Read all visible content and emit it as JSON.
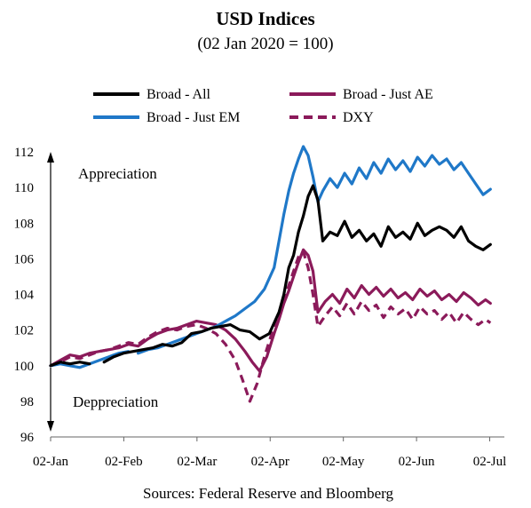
{
  "chart_data": {
    "type": "line",
    "title": "USD Indices",
    "subtitle": "(02 Jan 2020 = 100)",
    "source": "Sources: Federal Reserve and Bloomberg",
    "ylim": [
      96,
      112
    ],
    "yticks": [
      96,
      98,
      100,
      102,
      104,
      106,
      108,
      110,
      112
    ],
    "xticks": [
      "02-Jan",
      "02-Feb",
      "02-Mar",
      "02-Apr",
      "02-May",
      "02-Jun",
      "02-Jul"
    ],
    "x_unit": "days since 02-Jan",
    "xlim": [
      0,
      182
    ],
    "annotations": {
      "up": "Appreciation",
      "down": "Deppreciation"
    },
    "legend_position": "top",
    "series": [
      {
        "name": "Broad - All",
        "color": "#000000",
        "dash": false,
        "points": [
          [
            [
              0,
              100
            ],
            [
              4,
              100.2
            ],
            [
              8,
              100.1
            ],
            [
              12,
              100.2
            ],
            [
              16,
              100.1
            ]
          ],
          [
            [
              22,
              100.2
            ],
            [
              26,
              100.5
            ],
            [
              30,
              100.7
            ],
            [
              34,
              100.8
            ],
            [
              38,
              100.9
            ],
            [
              42,
              101.0
            ],
            [
              46,
              101.2
            ],
            [
              50,
              101.1
            ],
            [
              54,
              101.3
            ],
            [
              58,
              101.8
            ],
            [
              62,
              101.9
            ],
            [
              66,
              102.1
            ],
            [
              70,
              102.2
            ],
            [
              74,
              102.3
            ],
            [
              78,
              102.0
            ],
            [
              82,
              101.9
            ],
            [
              86,
              101.5
            ],
            [
              90,
              101.8
            ],
            [
              92,
              102.4
            ],
            [
              94,
              103.0
            ],
            [
              96,
              104.0
            ],
            [
              98,
              105.5
            ],
            [
              100,
              106.2
            ],
            [
              102,
              107.5
            ],
            [
              104,
              108.4
            ],
            [
              106,
              109.5
            ],
            [
              108,
              110.1
            ],
            [
              110,
              109.3
            ],
            [
              112,
              107.0
            ],
            [
              115,
              107.5
            ],
            [
              118,
              107.3
            ],
            [
              121,
              108.1
            ],
            [
              124,
              107.2
            ],
            [
              127,
              107.6
            ],
            [
              130,
              107.0
            ],
            [
              133,
              107.4
            ],
            [
              136,
              106.7
            ],
            [
              139,
              107.8
            ],
            [
              142,
              107.2
            ],
            [
              145,
              107.5
            ],
            [
              148,
              107.1
            ],
            [
              151,
              108.0
            ],
            [
              154,
              107.3
            ],
            [
              157,
              107.6
            ],
            [
              160,
              107.8
            ],
            [
              163,
              107.6
            ],
            [
              166,
              107.2
            ],
            [
              169,
              107.8
            ],
            [
              172,
              107.0
            ],
            [
              175,
              106.7
            ],
            [
              178,
              106.5
            ],
            [
              181,
              106.8
            ]
          ]
        ]
      },
      {
        "name": "Broad - Just AE",
        "color": "#8b1a5a",
        "dash": false,
        "points": [
          [
            [
              0,
              100
            ],
            [
              4,
              100.3
            ],
            [
              8,
              100.6
            ],
            [
              12,
              100.5
            ],
            [
              16,
              100.7
            ],
            [
              20,
              100.8
            ],
            [
              24,
              100.9
            ],
            [
              28,
              101.0
            ],
            [
              32,
              101.2
            ],
            [
              36,
              101.1
            ],
            [
              40,
              101.5
            ],
            [
              44,
              101.8
            ],
            [
              48,
              102.0
            ],
            [
              52,
              102.1
            ],
            [
              56,
              102.3
            ],
            [
              60,
              102.5
            ],
            [
              64,
              102.4
            ],
            [
              68,
              102.3
            ],
            [
              72,
              102.0
            ],
            [
              76,
              101.5
            ],
            [
              80,
              100.8
            ],
            [
              83,
              100.2
            ],
            [
              86,
              99.7
            ],
            [
              89,
              100.5
            ],
            [
              92,
              101.8
            ],
            [
              94,
              102.6
            ],
            [
              96,
              103.5
            ],
            [
              98,
              104.2
            ],
            [
              100,
              105.0
            ],
            [
              102,
              105.8
            ],
            [
              104,
              106.5
            ],
            [
              106,
              106.2
            ],
            [
              108,
              105.3
            ],
            [
              110,
              103.0
            ],
            [
              113,
              103.6
            ],
            [
              116,
              104.0
            ],
            [
              119,
              103.5
            ],
            [
              122,
              104.3
            ],
            [
              125,
              103.8
            ],
            [
              128,
              104.5
            ],
            [
              131,
              104.0
            ],
            [
              134,
              104.4
            ],
            [
              137,
              103.9
            ],
            [
              140,
              104.3
            ],
            [
              143,
              103.8
            ],
            [
              146,
              104.1
            ],
            [
              149,
              103.7
            ],
            [
              152,
              104.3
            ],
            [
              155,
              103.9
            ],
            [
              158,
              104.2
            ],
            [
              161,
              103.7
            ],
            [
              164,
              104.0
            ],
            [
              167,
              103.6
            ],
            [
              170,
              104.1
            ],
            [
              173,
              103.8
            ],
            [
              176,
              103.4
            ],
            [
              179,
              103.7
            ],
            [
              181,
              103.5
            ]
          ]
        ]
      },
      {
        "name": "Broad - Just EM",
        "color": "#1f78c8",
        "dash": false,
        "points": [
          [
            [
              0,
              100
            ],
            [
              4,
              100.1
            ],
            [
              8,
              100.0
            ],
            [
              12,
              99.9
            ],
            [
              16,
              100.1
            ],
            [
              20,
              100.3
            ],
            [
              24,
              100.5
            ],
            [
              28,
              100.7
            ],
            [
              32,
              100.8
            ]
          ],
          [
            [
              36,
              100.7
            ],
            [
              40,
              100.9
            ],
            [
              44,
              101.0
            ],
            [
              48,
              101.2
            ],
            [
              52,
              101.4
            ],
            [
              56,
              101.6
            ],
            [
              60,
              101.8
            ],
            [
              64,
              102.0
            ],
            [
              68,
              102.2
            ],
            [
              72,
              102.5
            ],
            [
              76,
              102.8
            ],
            [
              80,
              103.2
            ],
            [
              84,
              103.6
            ],
            [
              88,
              104.3
            ],
            [
              92,
              105.5
            ],
            [
              94,
              107.0
            ],
            [
              96,
              108.5
            ],
            [
              98,
              109.8
            ],
            [
              100,
              110.8
            ],
            [
              102,
              111.6
            ],
            [
              104,
              112.3
            ],
            [
              106,
              111.8
            ],
            [
              108,
              110.6
            ],
            [
              110,
              109.2
            ],
            [
              112,
              109.8
            ],
            [
              115,
              110.5
            ],
            [
              118,
              110.0
            ],
            [
              121,
              110.8
            ],
            [
              124,
              110.2
            ],
            [
              127,
              111.1
            ],
            [
              130,
              110.5
            ],
            [
              133,
              111.4
            ],
            [
              136,
              110.8
            ],
            [
              139,
              111.6
            ],
            [
              142,
              111.0
            ],
            [
              145,
              111.5
            ],
            [
              148,
              110.9
            ],
            [
              151,
              111.7
            ],
            [
              154,
              111.2
            ],
            [
              157,
              111.8
            ],
            [
              160,
              111.3
            ],
            [
              163,
              111.6
            ],
            [
              166,
              111.0
            ],
            [
              169,
              111.4
            ],
            [
              172,
              110.8
            ],
            [
              175,
              110.2
            ],
            [
              178,
              109.6
            ],
            [
              181,
              109.9
            ]
          ]
        ]
      },
      {
        "name": "DXY",
        "color": "#8b1a5a",
        "dash": true,
        "points": [
          [
            [
              0,
              100
            ],
            [
              4,
              100.2
            ],
            [
              8,
              100.5
            ],
            [
              12,
              100.4
            ],
            [
              16,
              100.6
            ],
            [
              20,
              100.8
            ],
            [
              24,
              100.9
            ],
            [
              28,
              101.1
            ],
            [
              32,
              101.3
            ],
            [
              36,
              101.2
            ],
            [
              40,
              101.6
            ],
            [
              44,
              101.9
            ],
            [
              48,
              102.1
            ],
            [
              52,
              102.0
            ],
            [
              56,
              102.2
            ],
            [
              60,
              102.3
            ],
            [
              64,
              102.1
            ],
            [
              68,
              101.8
            ],
            [
              72,
              101.2
            ],
            [
              76,
              100.3
            ],
            [
              79,
              99.2
            ],
            [
              82,
              98.0
            ],
            [
              85,
              99.0
            ],
            [
              88,
              100.5
            ],
            [
              91,
              101.8
            ],
            [
              94,
              102.8
            ],
            [
              96,
              103.7
            ],
            [
              98,
              104.5
            ],
            [
              100,
              105.3
            ],
            [
              102,
              106.1
            ],
            [
              104,
              106.4
            ],
            [
              106,
              105.5
            ],
            [
              108,
              104.0
            ],
            [
              110,
              102.2
            ],
            [
              113,
              102.8
            ],
            [
              116,
              103.3
            ],
            [
              119,
              102.8
            ],
            [
              122,
              103.5
            ],
            [
              125,
              102.9
            ],
            [
              128,
              103.6
            ],
            [
              131,
              103.1
            ],
            [
              134,
              103.4
            ],
            [
              137,
              102.7
            ],
            [
              140,
              103.3
            ],
            [
              143,
              102.9
            ],
            [
              146,
              103.2
            ],
            [
              149,
              102.6
            ],
            [
              152,
              103.3
            ],
            [
              155,
              102.9
            ],
            [
              158,
              103.1
            ],
            [
              161,
              102.6
            ],
            [
              164,
              103.0
            ],
            [
              167,
              102.4
            ],
            [
              170,
              103.0
            ],
            [
              173,
              102.6
            ],
            [
              176,
              102.3
            ],
            [
              179,
              102.6
            ],
            [
              181,
              102.4
            ]
          ]
        ]
      }
    ]
  }
}
